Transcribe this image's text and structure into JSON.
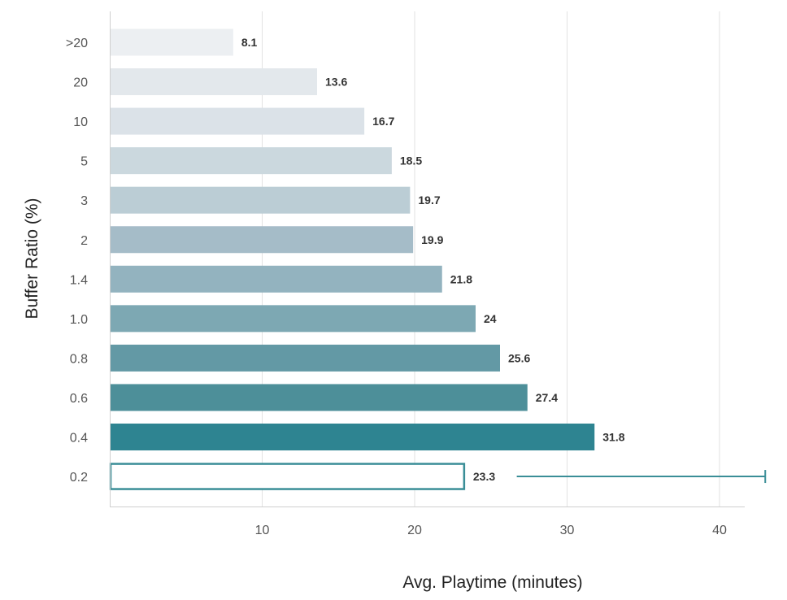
{
  "chart_data": {
    "type": "bar",
    "orientation": "horizontal",
    "title": "",
    "xlabel": "Avg. Playtime (minutes)",
    "ylabel": "Buffer Ratio (%)",
    "xlim": [
      0,
      41.5
    ],
    "x_ticks": [
      "10",
      "20",
      "30",
      "40"
    ],
    "x_tick_values": [
      10,
      20,
      30,
      40
    ],
    "grid": "vertical",
    "categories": [
      ">20",
      "20",
      "10",
      "5",
      "3",
      "2",
      "1.4",
      "1.0",
      "0.8",
      "0.6",
      "0.4",
      "0.2"
    ],
    "values": [
      8.1,
      13.6,
      16.7,
      18.5,
      19.7,
      19.9,
      21.8,
      24,
      25.6,
      27.4,
      31.8,
      23.3
    ],
    "value_labels": [
      "8.1",
      "13.6",
      "16.7",
      "18.5",
      "19.7",
      "19.9",
      "21.8",
      "24",
      "25.6",
      "27.4",
      "31.8",
      "23.3"
    ],
    "colors": [
      "#eceff2",
      "#e3e8ec",
      "#dbe2e8",
      "#cbd8de",
      "#bbcdd5",
      "#a5bcc8",
      "#93b3bf",
      "#7da8b3",
      "#6399a5",
      "#4d8f99",
      "#2e8491",
      "#ffffff"
    ],
    "outlined_bar": {
      "category": "0.2",
      "stroke_color": "#3a8e97"
    },
    "range_line": {
      "category": "0.2",
      "from": 26.7,
      "to": 43,
      "color": "#3a8e97"
    }
  }
}
